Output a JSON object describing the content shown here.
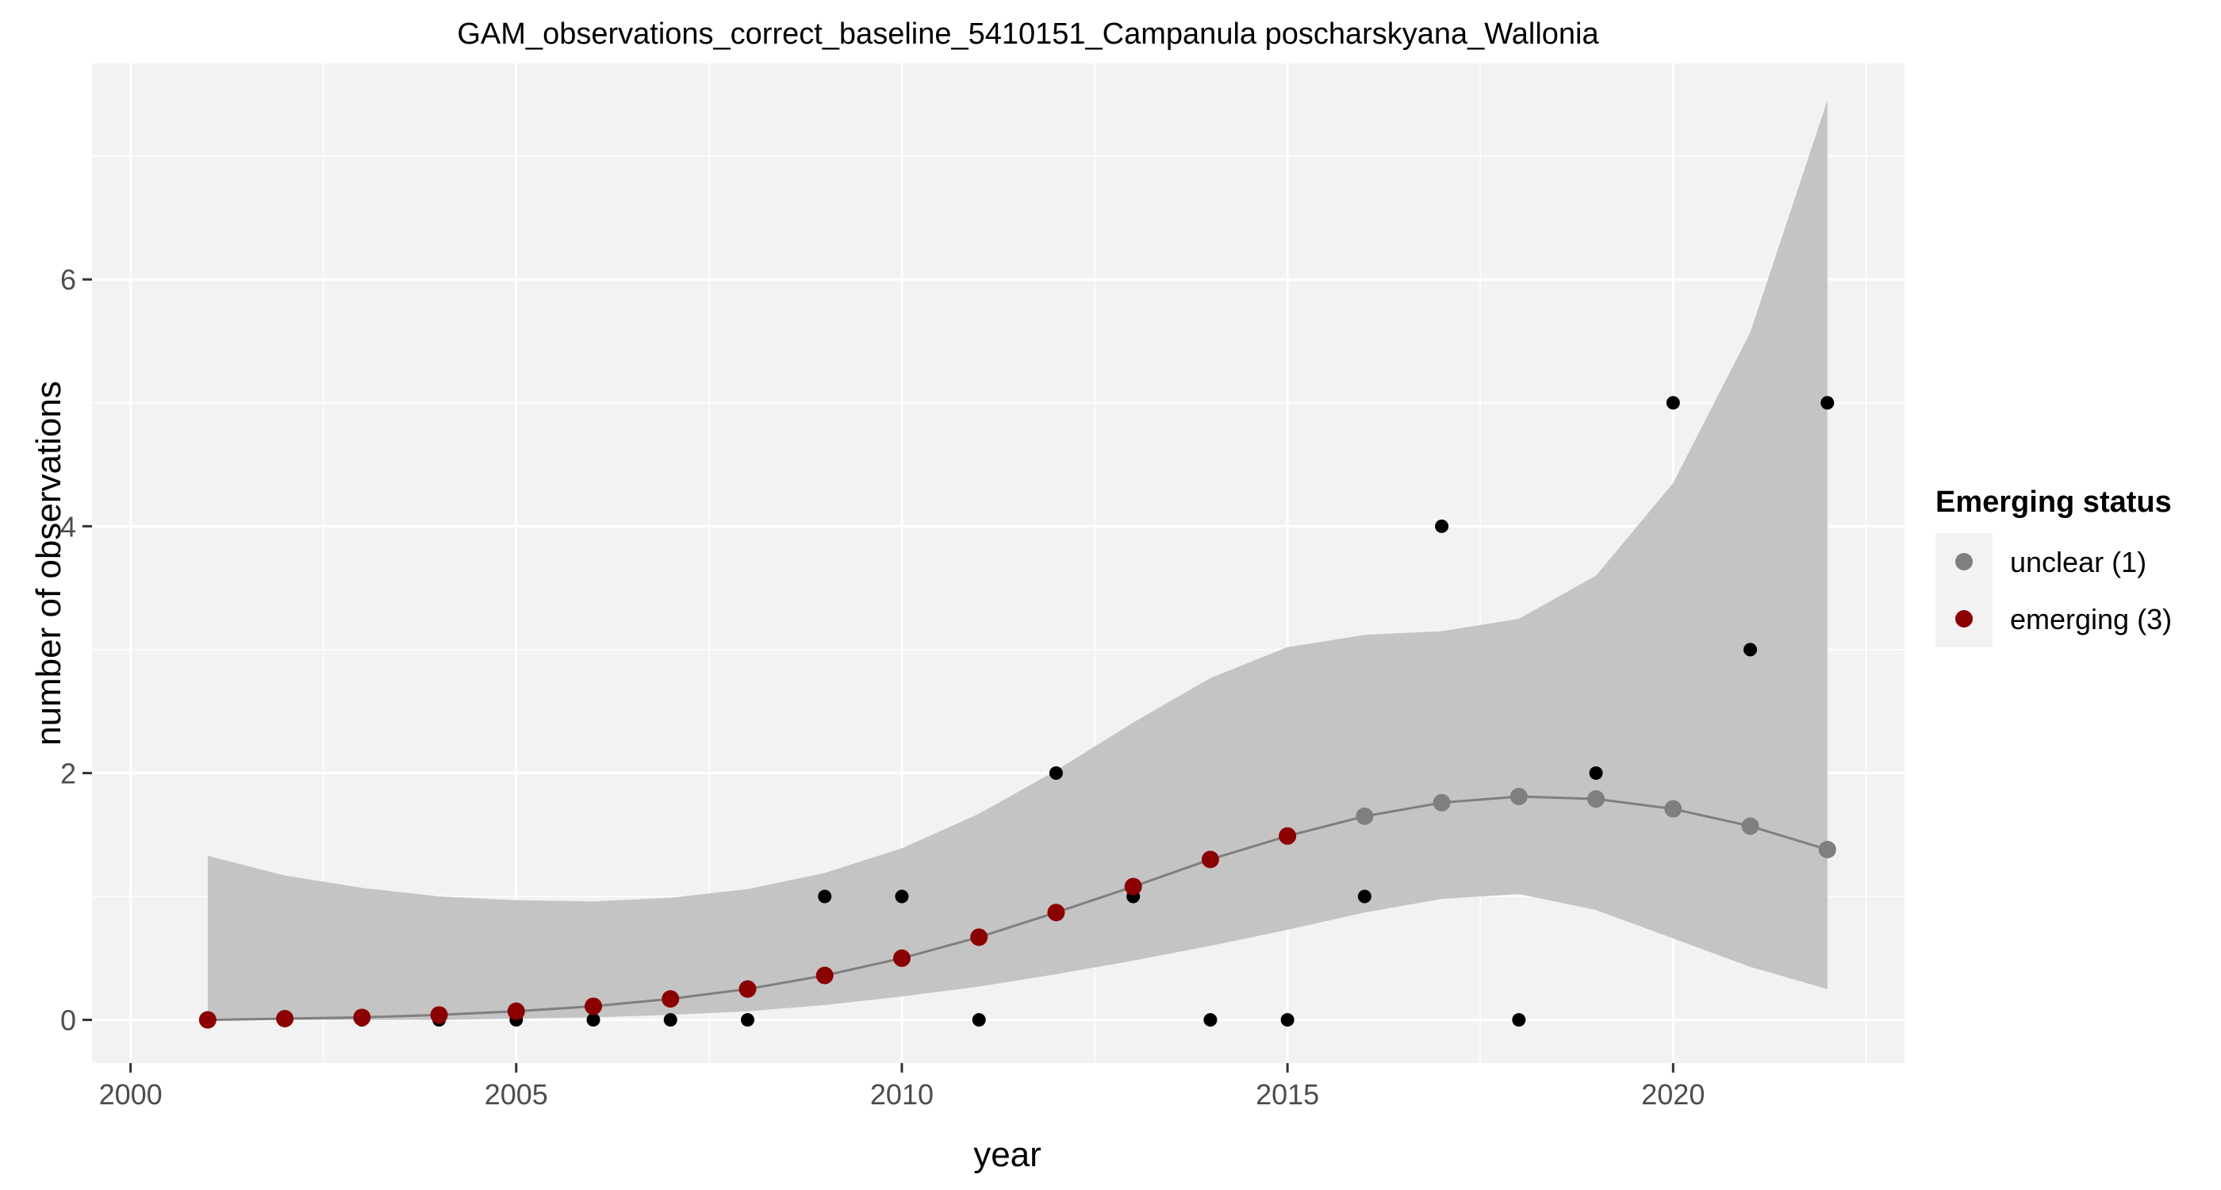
{
  "chart_data": {
    "type": "scatter",
    "title": "GAM_observations_correct_baseline_5410151_Campanula poscharskyana_Wallonia",
    "xlabel": "year",
    "ylabel": "number of observations",
    "xlim": [
      1999.5,
      2023.0
    ],
    "ylim": [
      -0.35,
      7.75
    ],
    "x_ticks": [
      2000,
      2005,
      2010,
      2015,
      2020
    ],
    "y_ticks": [
      0,
      2,
      4,
      6
    ],
    "grid": true,
    "legend": {
      "title": "Emerging status",
      "placement": "right",
      "entries": [
        {
          "label": "unclear (1)",
          "color": "#7f7f7f"
        },
        {
          "label": "emerging (3)",
          "color": "#8b0000"
        }
      ]
    },
    "colors": {
      "panel": "#f2f2f2",
      "grid": "#ffffff",
      "ribbon": "#c4c4c4",
      "fit_line": "#7f7f7f",
      "observed": "#000000",
      "unclear": "#7f7f7f",
      "emerging": "#8b0000"
    },
    "observed": [
      {
        "x": 2001,
        "y": 0
      },
      {
        "x": 2002,
        "y": 0
      },
      {
        "x": 2003,
        "y": 0
      },
      {
        "x": 2004,
        "y": 0
      },
      {
        "x": 2005,
        "y": 0
      },
      {
        "x": 2006,
        "y": 0
      },
      {
        "x": 2007,
        "y": 0
      },
      {
        "x": 2008,
        "y": 0
      },
      {
        "x": 2009,
        "y": 1
      },
      {
        "x": 2010,
        "y": 1
      },
      {
        "x": 2011,
        "y": 0
      },
      {
        "x": 2012,
        "y": 2
      },
      {
        "x": 2013,
        "y": 1
      },
      {
        "x": 2014,
        "y": 0
      },
      {
        "x": 2015,
        "y": 0
      },
      {
        "x": 2016,
        "y": 1
      },
      {
        "x": 2017,
        "y": 4
      },
      {
        "x": 2018,
        "y": 0
      },
      {
        "x": 2019,
        "y": 2
      },
      {
        "x": 2020,
        "y": 5
      },
      {
        "x": 2021,
        "y": 3
      },
      {
        "x": 2022,
        "y": 5
      }
    ],
    "fit": [
      {
        "x": 2001,
        "y": 0.0,
        "lower": 0.0,
        "upper": 1.33,
        "status": "emerging"
      },
      {
        "x": 2002,
        "y": 0.01,
        "lower": 0.0,
        "upper": 1.17,
        "status": "emerging"
      },
      {
        "x": 2003,
        "y": 0.02,
        "lower": 0.0,
        "upper": 1.07,
        "status": "emerging"
      },
      {
        "x": 2004,
        "y": 0.04,
        "lower": 0.0,
        "upper": 1.0,
        "status": "emerging"
      },
      {
        "x": 2005,
        "y": 0.07,
        "lower": 0.01,
        "upper": 0.97,
        "status": "emerging"
      },
      {
        "x": 2006,
        "y": 0.11,
        "lower": 0.02,
        "upper": 0.96,
        "status": "emerging"
      },
      {
        "x": 2007,
        "y": 0.17,
        "lower": 0.04,
        "upper": 0.99,
        "status": "emerging"
      },
      {
        "x": 2008,
        "y": 0.25,
        "lower": 0.07,
        "upper": 1.06,
        "status": "emerging"
      },
      {
        "x": 2009,
        "y": 0.36,
        "lower": 0.12,
        "upper": 1.19,
        "status": "emerging"
      },
      {
        "x": 2010,
        "y": 0.5,
        "lower": 0.19,
        "upper": 1.39,
        "status": "emerging"
      },
      {
        "x": 2011,
        "y": 0.67,
        "lower": 0.27,
        "upper": 1.67,
        "status": "emerging"
      },
      {
        "x": 2012,
        "y": 0.87,
        "lower": 0.37,
        "upper": 2.02,
        "status": "emerging"
      },
      {
        "x": 2013,
        "y": 1.08,
        "lower": 0.48,
        "upper": 2.41,
        "status": "emerging"
      },
      {
        "x": 2014,
        "y": 1.3,
        "lower": 0.6,
        "upper": 2.77,
        "status": "emerging"
      },
      {
        "x": 2015,
        "y": 1.49,
        "lower": 0.73,
        "upper": 3.02,
        "status": "emerging"
      },
      {
        "x": 2016,
        "y": 1.65,
        "lower": 0.87,
        "upper": 3.12,
        "status": "unclear"
      },
      {
        "x": 2017,
        "y": 1.76,
        "lower": 0.98,
        "upper": 3.15,
        "status": "unclear"
      },
      {
        "x": 2018,
        "y": 1.81,
        "lower": 1.02,
        "upper": 3.25,
        "status": "unclear"
      },
      {
        "x": 2019,
        "y": 1.79,
        "lower": 0.89,
        "upper": 3.6,
        "status": "unclear"
      },
      {
        "x": 2020,
        "y": 1.71,
        "lower": 0.66,
        "upper": 4.35,
        "status": "unclear"
      },
      {
        "x": 2021,
        "y": 1.57,
        "lower": 0.43,
        "upper": 5.57,
        "status": "unclear"
      },
      {
        "x": 2022,
        "y": 1.38,
        "lower": 0.25,
        "upper": 7.45,
        "status": "unclear"
      }
    ]
  }
}
